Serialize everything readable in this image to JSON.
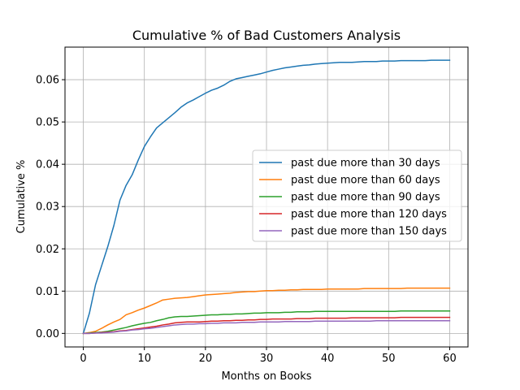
{
  "chart_data": {
    "type": "line",
    "title": "Cumulative % of Bad Customers Analysis",
    "xlabel": "Months on Books",
    "ylabel": "Cumulative %",
    "xlim": [
      -3,
      63
    ],
    "ylim": [
      -0.0032,
      0.0677
    ],
    "xticks": [
      0,
      10,
      20,
      30,
      40,
      50,
      60
    ],
    "xtick_labels": [
      "0",
      "10",
      "20",
      "30",
      "40",
      "50",
      "60"
    ],
    "yticks": [
      0,
      0.01,
      0.02,
      0.03,
      0.04,
      0.05,
      0.06
    ],
    "ytick_labels": [
      "0.00",
      "0.01",
      "0.02",
      "0.03",
      "0.04",
      "0.05",
      "0.06"
    ],
    "grid": true,
    "legend_position": "center-right",
    "x": [
      0,
      1,
      2,
      3,
      4,
      5,
      6,
      7,
      8,
      9,
      10,
      11,
      12,
      13,
      14,
      15,
      16,
      17,
      18,
      19,
      20,
      21,
      22,
      23,
      24,
      25,
      26,
      27,
      28,
      29,
      30,
      31,
      32,
      33,
      34,
      35,
      36,
      37,
      38,
      39,
      40,
      41,
      42,
      43,
      44,
      45,
      46,
      47,
      48,
      49,
      50,
      51,
      52,
      53,
      54,
      55,
      56,
      57,
      58,
      59,
      60
    ],
    "series": [
      {
        "name": "past due more than 30 days",
        "color": "#1f77b4",
        "values": [
          0,
          0.0048,
          0.0115,
          0.016,
          0.0205,
          0.0255,
          0.0315,
          0.035,
          0.0375,
          0.041,
          0.0442,
          0.0465,
          0.0486,
          0.0498,
          0.051,
          0.0522,
          0.0535,
          0.0545,
          0.0552,
          0.056,
          0.0568,
          0.0575,
          0.058,
          0.0587,
          0.0596,
          0.0602,
          0.0605,
          0.0608,
          0.0611,
          0.0614,
          0.0618,
          0.0622,
          0.0625,
          0.0628,
          0.063,
          0.0632,
          0.0634,
          0.0635,
          0.0637,
          0.0638,
          0.0639,
          0.064,
          0.0641,
          0.0641,
          0.0641,
          0.0642,
          0.0643,
          0.0643,
          0.0643,
          0.0644,
          0.0644,
          0.0644,
          0.0645,
          0.0645,
          0.0645,
          0.0645,
          0.0645,
          0.0646,
          0.0646,
          0.0646,
          0.0646
        ]
      },
      {
        "name": "past due more than 60 days",
        "color": "#ff7f0e",
        "values": [
          0,
          0.0002,
          0.0005,
          0.0012,
          0.002,
          0.0027,
          0.0033,
          0.0044,
          0.0049,
          0.0055,
          0.006,
          0.0066,
          0.0072,
          0.0079,
          0.0081,
          0.0083,
          0.0084,
          0.0085,
          0.0087,
          0.0089,
          0.0091,
          0.0092,
          0.0093,
          0.0094,
          0.0095,
          0.0097,
          0.0098,
          0.0099,
          0.0099,
          0.01,
          0.0101,
          0.0101,
          0.0102,
          0.0102,
          0.0103,
          0.0103,
          0.0104,
          0.0104,
          0.0104,
          0.0104,
          0.0105,
          0.0105,
          0.0105,
          0.0105,
          0.0105,
          0.0105,
          0.0106,
          0.0106,
          0.0106,
          0.0106,
          0.0106,
          0.0106,
          0.0106,
          0.0107,
          0.0107,
          0.0107,
          0.0107,
          0.0107,
          0.0107,
          0.0107,
          0.0107
        ]
      },
      {
        "name": "past due more than 90 days",
        "color": "#2ca02c",
        "values": [
          0,
          0.0001,
          0.0002,
          0.0003,
          0.0005,
          0.0008,
          0.0011,
          0.0014,
          0.0018,
          0.0021,
          0.0024,
          0.0026,
          0.003,
          0.0033,
          0.0037,
          0.0039,
          0.004,
          0.004,
          0.0041,
          0.0042,
          0.0043,
          0.0044,
          0.0044,
          0.0045,
          0.0045,
          0.0046,
          0.0046,
          0.0047,
          0.0048,
          0.0048,
          0.0049,
          0.0049,
          0.0049,
          0.005,
          0.005,
          0.0051,
          0.0051,
          0.0051,
          0.0052,
          0.0052,
          0.0052,
          0.0052,
          0.0052,
          0.0052,
          0.0052,
          0.0052,
          0.0052,
          0.0052,
          0.0052,
          0.0052,
          0.0052,
          0.0052,
          0.0053,
          0.0053,
          0.0053,
          0.0053,
          0.0053,
          0.0053,
          0.0053,
          0.0053,
          0.0053
        ]
      },
      {
        "name": "past due more than 120 days",
        "color": "#d62728",
        "values": [
          0,
          0,
          0.0001,
          0.0002,
          0.0003,
          0.0004,
          0.0006,
          0.0007,
          0.0009,
          0.0011,
          0.0013,
          0.0015,
          0.0017,
          0.002,
          0.0022,
          0.0025,
          0.0026,
          0.0027,
          0.0027,
          0.0027,
          0.0028,
          0.0029,
          0.0029,
          0.003,
          0.003,
          0.0031,
          0.0031,
          0.0032,
          0.0032,
          0.0033,
          0.0033,
          0.0034,
          0.0034,
          0.0034,
          0.0034,
          0.0035,
          0.0035,
          0.0035,
          0.0036,
          0.0036,
          0.0036,
          0.0036,
          0.0036,
          0.0036,
          0.0037,
          0.0037,
          0.0037,
          0.0037,
          0.0037,
          0.0037,
          0.0037,
          0.0037,
          0.0038,
          0.0038,
          0.0038,
          0.0038,
          0.0038,
          0.0038,
          0.0038,
          0.0038,
          0.0038
        ]
      },
      {
        "name": "past due more than 150 days",
        "color": "#9467bd",
        "values": [
          0,
          0,
          0.0001,
          0.0001,
          0.0002,
          0.0003,
          0.0005,
          0.0006,
          0.0008,
          0.0009,
          0.0011,
          0.0012,
          0.0014,
          0.0016,
          0.0018,
          0.002,
          0.0021,
          0.0022,
          0.0022,
          0.0023,
          0.0023,
          0.0024,
          0.0024,
          0.0025,
          0.0025,
          0.0025,
          0.0026,
          0.0026,
          0.0026,
          0.0027,
          0.0027,
          0.0027,
          0.0027,
          0.0028,
          0.0028,
          0.0028,
          0.0028,
          0.0028,
          0.0029,
          0.0029,
          0.0029,
          0.0029,
          0.0029,
          0.0029,
          0.0029,
          0.0029,
          0.0029,
          0.0029,
          0.003,
          0.003,
          0.003,
          0.003,
          0.003,
          0.003,
          0.003,
          0.003,
          0.003,
          0.003,
          0.003,
          0.003,
          0.003
        ]
      }
    ]
  }
}
